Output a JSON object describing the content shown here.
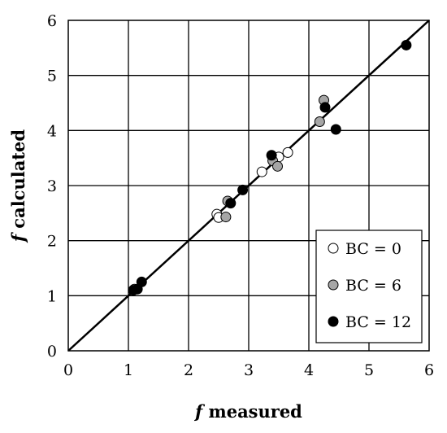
{
  "chart_data": {
    "type": "scatter",
    "title": "",
    "xlabel": {
      "italic": "f",
      "rest": " measured"
    },
    "ylabel": {
      "italic": "f",
      "rest": " calculated"
    },
    "xlim": [
      0,
      6
    ],
    "ylim": [
      0,
      6
    ],
    "x_ticks": [
      "0",
      "1",
      "2",
      "3",
      "4",
      "5",
      "6"
    ],
    "y_ticks": [
      "0",
      "1",
      "2",
      "3",
      "4",
      "5",
      "6"
    ],
    "grid": true,
    "reference_line": {
      "x": [
        0,
        6
      ],
      "y": [
        0,
        6
      ]
    },
    "legend_position": "bottom-right",
    "series": [
      {
        "name": "BC = 0",
        "fill": "#ffffff",
        "x": [
          2.47,
          2.5,
          3.22,
          3.5,
          3.65
        ],
        "y": [
          2.48,
          2.42,
          3.25,
          3.52,
          3.6
        ]
      },
      {
        "name": "BC = 6",
        "fill": "#a6a6a6",
        "x": [
          1.1,
          2.62,
          2.65,
          3.4,
          3.48,
          4.18,
          4.25
        ],
        "y": [
          1.12,
          2.43,
          2.72,
          3.45,
          3.35,
          4.16,
          4.55
        ]
      },
      {
        "name": "BC = 12",
        "fill": "#000000",
        "x": [
          1.08,
          1.15,
          1.22,
          2.7,
          2.9,
          3.38,
          4.27,
          4.45,
          5.62
        ],
        "y": [
          1.1,
          1.12,
          1.25,
          2.68,
          2.92,
          3.55,
          4.42,
          4.02,
          5.55
        ]
      }
    ]
  }
}
